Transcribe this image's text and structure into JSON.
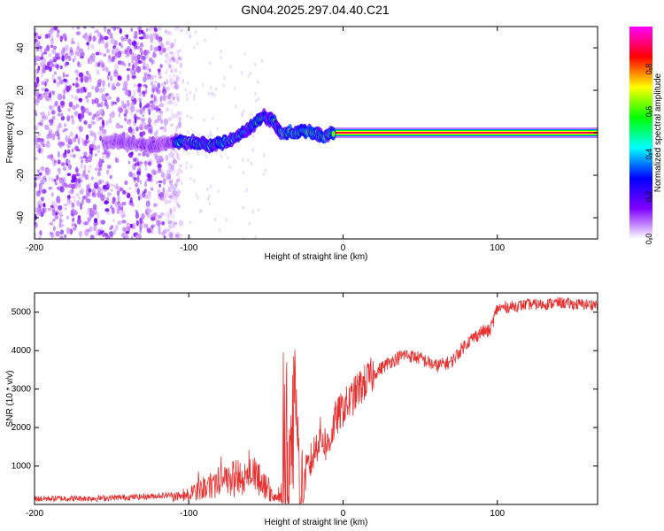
{
  "title": "GN04.2025.297.04.40.C21",
  "chart_data": [
    {
      "type": "heatmap",
      "title": "GN04.2025.297.04.40.C21",
      "xlabel": "Height of straight line (km)",
      "ylabel": "Frequency (Hz)",
      "xlim": [
        -200,
        165
      ],
      "ylim": [
        -50,
        50
      ],
      "xticks": [
        "-200",
        "-100",
        "0",
        "100"
      ],
      "yticks": [
        "-40",
        "-20",
        "0",
        "20",
        "40"
      ],
      "colorbar": {
        "label": "Normalized spectral amplitude",
        "range": [
          0,
          1
        ],
        "ticks": [
          "0.0",
          "0.2",
          "0.4",
          "0.6",
          "0.8"
        ],
        "colors": [
          "#ffffff",
          "#8000ff",
          "#0000ff",
          "#00ffff",
          "#00ff00",
          "#ffff00",
          "#ff0000",
          "#ff00ff"
        ]
      },
      "ridge": {
        "description": "Doppler trace of the object",
        "x": [
          -155,
          -145,
          -135,
          -125,
          -115,
          -105,
          -95,
          -85,
          -75,
          -65,
          -58,
          -52,
          -46,
          -40,
          -32,
          -25,
          -18,
          -12,
          -6,
          0,
          20,
          60,
          100,
          165
        ],
        "y": [
          -5,
          -4,
          -5,
          -6,
          -5,
          -4,
          -5,
          -6,
          -4,
          0,
          4,
          8,
          6,
          0,
          0,
          1,
          0,
          -2,
          0,
          0,
          0,
          0,
          0,
          0
        ]
      },
      "noise_region_x": [
        -200,
        -115
      ]
    },
    {
      "type": "line",
      "xlabel": "Height of straight line (km)",
      "ylabel": "SNR (10 * v/v)",
      "xlim": [
        -200,
        165
      ],
      "ylim": [
        0,
        5500
      ],
      "xticks": [
        "-200",
        "-100",
        "0",
        "100"
      ],
      "yticks": [
        "1000",
        "2000",
        "3000",
        "4000",
        "5000"
      ],
      "color": "#e8302f",
      "series": [
        {
          "name": "SNR",
          "x": [
            -200,
            -160,
            -130,
            -110,
            -100,
            -90,
            -80,
            -70,
            -60,
            -55,
            -50,
            -45,
            -40,
            -35,
            -32,
            -30,
            -28,
            -25,
            -20,
            -15,
            -10,
            -5,
            0,
            5,
            10,
            20,
            30,
            40,
            50,
            60,
            70,
            80,
            90,
            95,
            100,
            110,
            120,
            130,
            140,
            150,
            165
          ],
          "y": [
            150,
            160,
            200,
            250,
            350,
            600,
            750,
            900,
            1000,
            900,
            600,
            200,
            250,
            700,
            2700,
            2200,
            400,
            700,
            1200,
            1800,
            1500,
            2200,
            2500,
            2700,
            3000,
            3400,
            3700,
            3900,
            3800,
            3600,
            3700,
            4200,
            4500,
            4500,
            5100,
            5150,
            5200,
            5200,
            5250,
            5200,
            5200
          ]
        }
      ]
    }
  ]
}
